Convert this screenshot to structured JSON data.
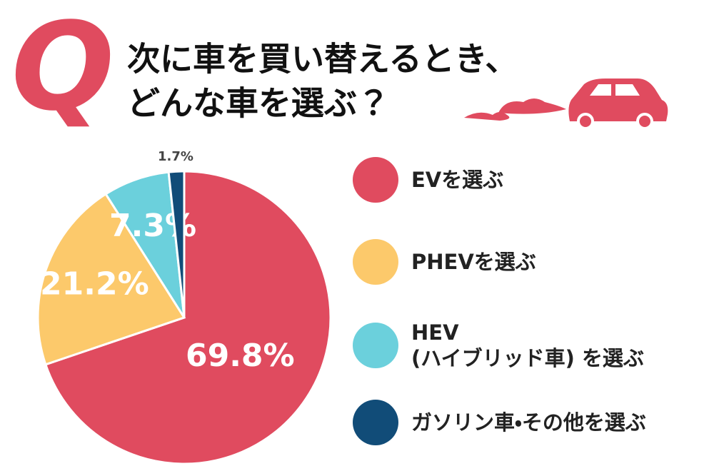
{
  "chart_data": {
    "type": "pie",
    "q_label": "Q",
    "title_lines": [
      "次に車を買い替えるとき、",
      "どんな車を選ぶ？"
    ],
    "categories": [
      "EVを選ぶ",
      "PHEVを選ぶ",
      "HEV\n(ハイブリッド車) を選ぶ",
      "ガソリン車・その他を選ぶ"
    ],
    "values": [
      69.8,
      21.2,
      7.3,
      1.7
    ],
    "value_labels": [
      "69.8%",
      "21.2%",
      "7.3%",
      "1.7%"
    ],
    "colors": [
      "#e04b5f",
      "#fcc96b",
      "#6bd0dc",
      "#114c78"
    ]
  }
}
